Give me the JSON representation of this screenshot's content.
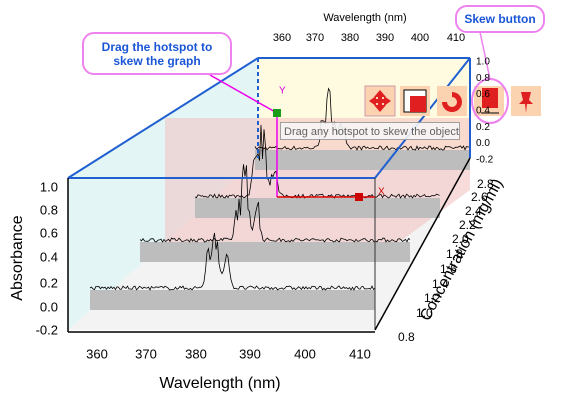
{
  "callouts": {
    "hotspot": "Drag the hotspot to skew the graph",
    "skew_button": "Skew button"
  },
  "tooltip": "Drag any hotspot to skew the object",
  "hotspots": {
    "x": "X",
    "y": "Y"
  },
  "axes": {
    "x_title": "Wavelength (nm)",
    "x_top_title": "Wavelength (nm)",
    "y_title": "Absorbance",
    "z_title": "Concentration (mg/ml)",
    "x_ticks": [
      "360",
      "370",
      "380",
      "390",
      "400",
      "410"
    ],
    "x_top_ticks": [
      "360",
      "370",
      "380",
      "390",
      "400",
      "410"
    ],
    "y_ticks": [
      "1.0",
      "0.8",
      "0.6",
      "0.4",
      "0.2",
      "0.0",
      "-0.2"
    ],
    "y_back_ticks": [
      "1.0",
      "0.8",
      "0.6",
      "0.4",
      "0.2",
      "0.0",
      "-0.2"
    ],
    "z_ticks": [
      "2.8",
      "2.6",
      "2.4",
      "2.2",
      "2.0",
      "1.8",
      "1.6",
      "1.4",
      "1.2",
      "1.0",
      "0.8"
    ]
  }
}
